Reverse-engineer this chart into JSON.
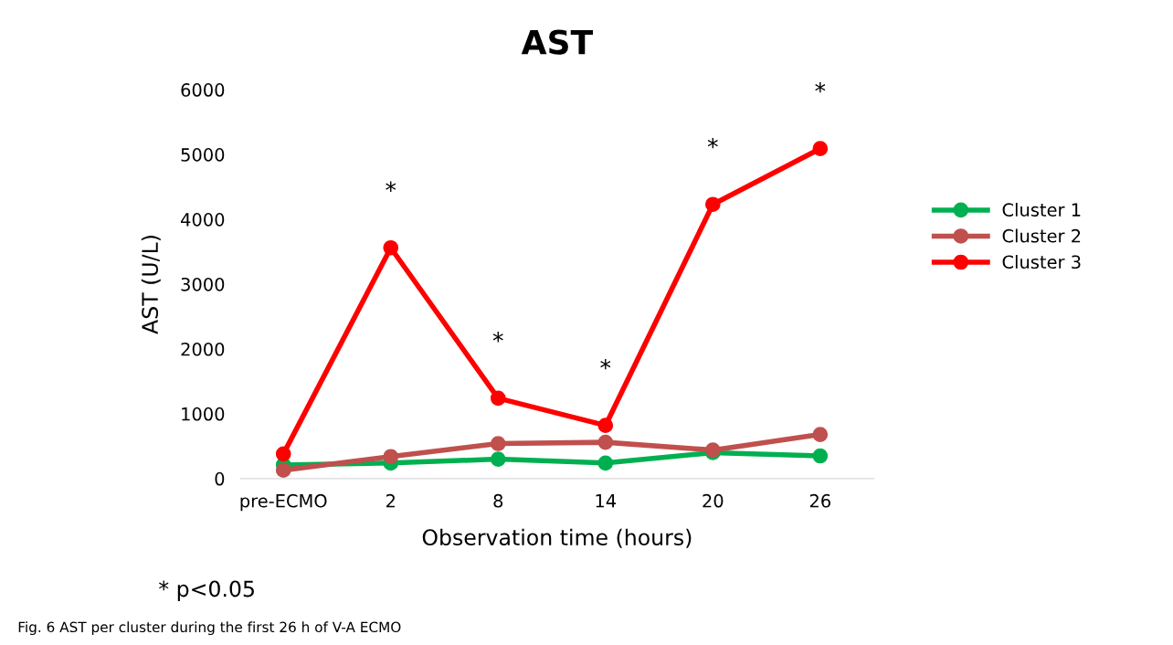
{
  "chart_data": {
    "type": "line",
    "title": "AST",
    "xlabel": "Observation time (hours)",
    "ylabel": "AST (U/L)",
    "categories": [
      "pre-ECMO",
      "2",
      "8",
      "14",
      "20",
      "26"
    ],
    "series": [
      {
        "name": "Cluster 1",
        "color": "#00b050",
        "values": [
          210,
          240,
          300,
          240,
          400,
          350
        ]
      },
      {
        "name": "Cluster 2",
        "color": "#c0504d",
        "values": [
          130,
          340,
          540,
          560,
          440,
          680
        ]
      },
      {
        "name": "Cluster 3",
        "color": "#ff0000",
        "values": [
          380,
          3560,
          1240,
          820,
          4230,
          5090
        ]
      }
    ],
    "ylim": [
      0,
      6000
    ],
    "yticks": [
      0,
      1000,
      2000,
      3000,
      4000,
      5000,
      6000
    ],
    "grid": false,
    "legend": "right",
    "marker": "circle",
    "line_style": "solid",
    "annotations": [
      "*",
      "*",
      "*",
      "*",
      "*",
      "* p<0.05",
      "Fig. 6 AST per cluster during the first 26 h of V-A ECMO"
    ]
  }
}
